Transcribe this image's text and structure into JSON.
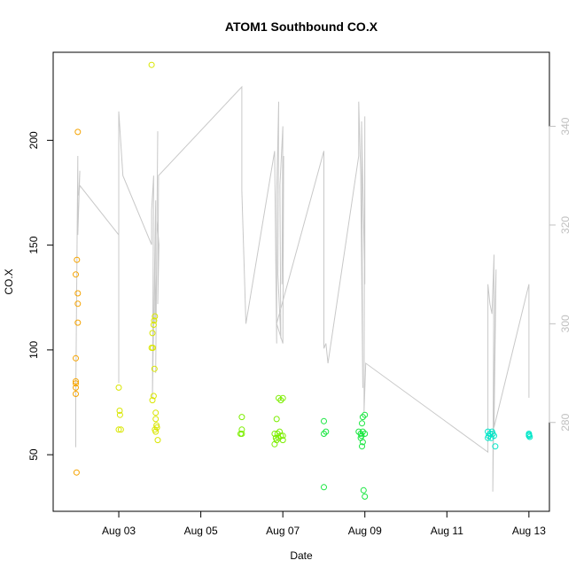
{
  "chart_data": {
    "type": "scatter",
    "title": "ATOM1 Southbound CO.X",
    "xlabel": "Date",
    "ylabel": "CO.X",
    "xlim": [
      -0.6,
      11.5
    ],
    "ylim": [
      23,
      242
    ],
    "x_ticks": [
      {
        "value": 1,
        "label": "Aug 03"
      },
      {
        "value": 3,
        "label": "Aug 05"
      },
      {
        "value": 5,
        "label": "Aug 07"
      },
      {
        "value": 7,
        "label": "Aug 09"
      },
      {
        "value": 9,
        "label": "Aug 11"
      },
      {
        "value": 11,
        "label": "Aug 13"
      }
    ],
    "y_ticks": [
      50,
      100,
      150,
      200
    ],
    "y2": {
      "label": "",
      "color": "#c0c0c0",
      "ylim": [
        262,
        355
      ],
      "ticks": [
        280,
        300,
        320,
        340
      ]
    },
    "x_units_note": "days after Aug 02",
    "series": [
      {
        "color": "#f5a300",
        "points": [
          [
            -0.05,
            85
          ],
          [
            -0.05,
            84
          ],
          [
            -0.05,
            82
          ],
          [
            -0.05,
            79
          ],
          [
            -0.05,
            96
          ],
          [
            -0.05,
            136
          ],
          [
            -0.02,
            143
          ],
          [
            0.0,
            127
          ],
          [
            0.0,
            122
          ],
          [
            0.0,
            113
          ],
          [
            0.0,
            204
          ],
          [
            -0.03,
            41.5
          ]
        ]
      },
      {
        "color": "#d9e600",
        "points": [
          [
            1.0,
            82
          ],
          [
            1.02,
            71
          ],
          [
            1.03,
            69
          ],
          [
            1.0,
            62
          ],
          [
            1.05,
            62
          ],
          [
            1.8,
            236
          ],
          [
            1.8,
            101
          ],
          [
            1.83,
            101
          ],
          [
            1.82,
            108
          ],
          [
            1.85,
            112
          ],
          [
            1.86,
            114
          ],
          [
            1.88,
            116
          ],
          [
            1.82,
            76
          ],
          [
            1.85,
            78
          ],
          [
            1.9,
            70
          ],
          [
            1.9,
            67
          ],
          [
            1.92,
            64
          ],
          [
            1.88,
            62
          ],
          [
            1.93,
            63
          ],
          [
            1.9,
            61
          ],
          [
            1.95,
            57
          ],
          [
            1.87,
            91
          ]
        ]
      },
      {
        "color": "#7cee00",
        "points": [
          [
            4.0,
            68
          ],
          [
            4.0,
            62
          ],
          [
            3.97,
            60
          ],
          [
            4.0,
            60
          ],
          [
            4.8,
            60
          ],
          [
            4.85,
            67
          ],
          [
            4.9,
            77
          ],
          [
            4.95,
            76
          ],
          [
            5.0,
            77
          ],
          [
            4.8,
            55
          ],
          [
            4.85,
            57
          ],
          [
            4.9,
            58
          ],
          [
            5.0,
            57
          ],
          [
            4.95,
            59
          ],
          [
            4.87,
            60
          ],
          [
            4.92,
            61
          ],
          [
            5.0,
            59
          ],
          [
            4.83,
            58
          ]
        ]
      },
      {
        "color": "#19e640",
        "points": [
          [
            6.0,
            66
          ],
          [
            6.0,
            60
          ],
          [
            6.05,
            61
          ],
          [
            6.0,
            34.5
          ],
          [
            6.85,
            61
          ],
          [
            6.9,
            60
          ],
          [
            6.95,
            61
          ],
          [
            7.0,
            69
          ],
          [
            6.95,
            68
          ],
          [
            6.93,
            65
          ],
          [
            6.9,
            58
          ],
          [
            6.92,
            59
          ],
          [
            6.95,
            56
          ],
          [
            6.93,
            54
          ],
          [
            7.0,
            60
          ],
          [
            6.97,
            33
          ],
          [
            7.0,
            30
          ]
        ]
      },
      {
        "color": "#00e6c8",
        "points": [
          [
            10.0,
            61
          ],
          [
            10.02,
            59
          ],
          [
            10.05,
            60
          ],
          [
            10.1,
            61
          ],
          [
            10.08,
            58
          ],
          [
            10.12,
            60
          ],
          [
            10.15,
            59
          ],
          [
            10.0,
            58
          ],
          [
            10.18,
            54
          ],
          [
            11.0,
            60
          ],
          [
            11.0,
            59
          ],
          [
            11.02,
            58.5
          ],
          [
            11.0,
            59.5
          ]
        ]
      }
    ],
    "line_series": {
      "axis": "y2",
      "color": "#c8c8c8",
      "points": [
        [
          -0.05,
          275
        ],
        [
          -0.05,
          285
        ],
        [
          0.0,
          334
        ],
        [
          0.0,
          318
        ],
        [
          0.05,
          331
        ],
        [
          0.02,
          326
        ],
        [
          0.05,
          328
        ],
        [
          1.0,
          318
        ],
        [
          1.0,
          288
        ],
        [
          1.0,
          343
        ],
        [
          1.1,
          330
        ],
        [
          1.8,
          316
        ],
        [
          1.8,
          323
        ],
        [
          1.85,
          330
        ],
        [
          1.82,
          285
        ],
        [
          1.9,
          325
        ],
        [
          1.88,
          300
        ],
        [
          1.92,
          310
        ],
        [
          1.95,
          339
        ],
        [
          1.9,
          290
        ],
        [
          1.93,
          321
        ],
        [
          1.98,
          316
        ],
        [
          1.95,
          304
        ],
        [
          1.97,
          330
        ],
        [
          4.0,
          348
        ],
        [
          4.0,
          327
        ],
        [
          4.1,
          300
        ],
        [
          4.8,
          335
        ],
        [
          4.85,
          296
        ],
        [
          4.85,
          326
        ],
        [
          4.9,
          345
        ],
        [
          4.88,
          310
        ],
        [
          4.95,
          297
        ],
        [
          4.93,
          328
        ],
        [
          5.0,
          340
        ],
        [
          4.98,
          308
        ],
        [
          5.02,
          334
        ],
        [
          5.0,
          296
        ],
        [
          4.85,
          300
        ],
        [
          6.0,
          335
        ],
        [
          6.0,
          295
        ],
        [
          6.05,
          296
        ],
        [
          6.1,
          292
        ],
        [
          6.85,
          334
        ],
        [
          6.85,
          345
        ],
        [
          6.9,
          330
        ],
        [
          6.95,
          287
        ],
        [
          6.92,
          341
        ],
        [
          7.0,
          308
        ],
        [
          7.0,
          342
        ],
        [
          6.98,
          282
        ],
        [
          7.02,
          292
        ],
        [
          10.0,
          274
        ],
        [
          10.0,
          308
        ],
        [
          10.05,
          304
        ],
        [
          10.1,
          302
        ],
        [
          10.15,
          314
        ],
        [
          10.12,
          266
        ],
        [
          10.18,
          305
        ],
        [
          10.2,
          311
        ],
        [
          10.15,
          279
        ],
        [
          11.0,
          308
        ],
        [
          11.0,
          285
        ]
      ]
    }
  }
}
